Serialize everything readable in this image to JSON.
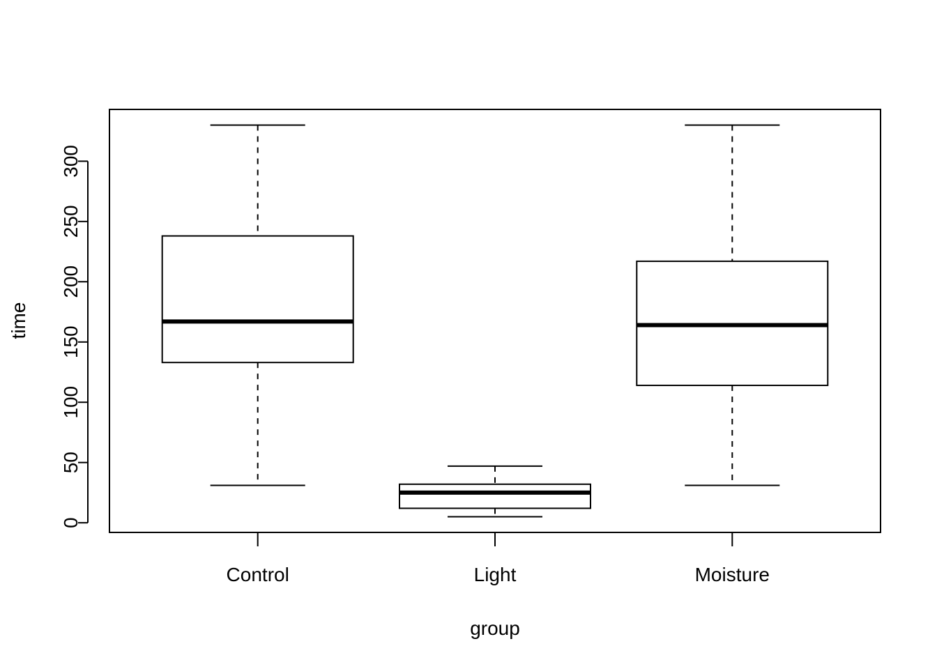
{
  "chart_data": {
    "type": "boxplot",
    "title": "",
    "xlabel": "group",
    "ylabel": "time",
    "ylim": [
      -8,
      343
    ],
    "yticks": [
      0,
      50,
      100,
      150,
      200,
      250,
      300
    ],
    "grid": false,
    "legend": "none",
    "categories": [
      "Control",
      "Light",
      "Moisture"
    ],
    "boxes": [
      {
        "category": "Control",
        "whisker_low": 31,
        "q1": 133,
        "median": 167,
        "q3": 238,
        "whisker_high": 330
      },
      {
        "category": "Light",
        "whisker_low": 5,
        "q1": 12,
        "median": 25,
        "q3": 32,
        "whisker_high": 47
      },
      {
        "category": "Moisture",
        "whisker_low": 31,
        "q1": 114,
        "median": 164,
        "q3": 217,
        "whisker_high": 330
      }
    ],
    "colors": {
      "stroke": "#000000",
      "box_fill": "#ffffff"
    }
  }
}
